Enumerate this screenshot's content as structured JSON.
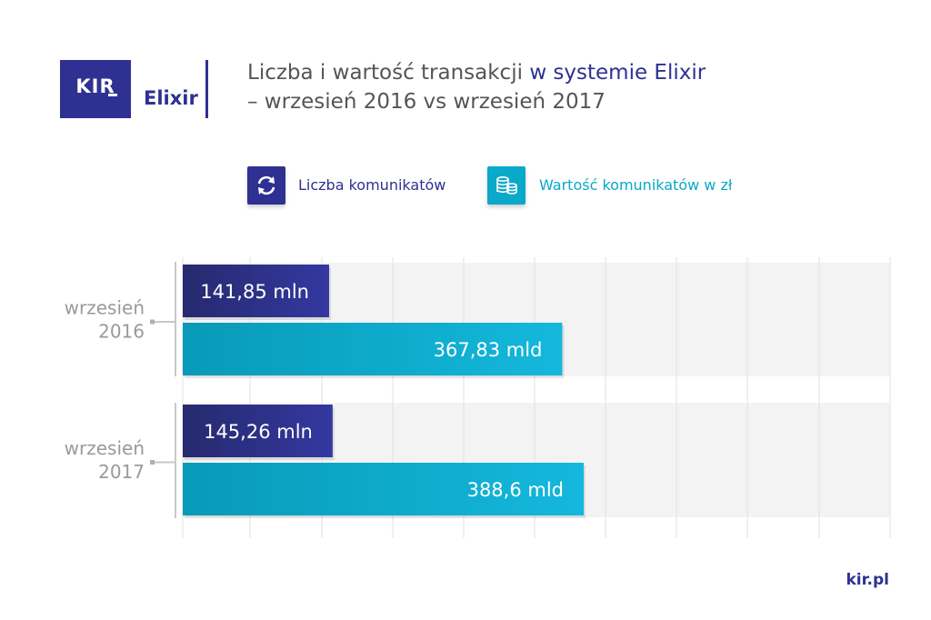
{
  "header": {
    "logo_kir": "KIR",
    "logo_elixir": "Elixir",
    "title_part1": "Liczba i wartość transakcji ",
    "title_accent": "w systemie Elixir",
    "title_line2": "– wrzesień 2016 vs wrzesień 2017"
  },
  "legend": {
    "items": [
      {
        "label": "Liczba komunikatów",
        "icon": "refresh-arrows-icon",
        "color": "#2e3192"
      },
      {
        "label": "Wartość komunikatów w zł",
        "icon": "coins-stack-icon",
        "color": "#0aa8c9"
      }
    ]
  },
  "chart_data": {
    "type": "bar",
    "orientation": "horizontal",
    "categories": [
      "wrzesień\n2016",
      "wrzesień\n2017"
    ],
    "series": [
      {
        "name": "Liczba komunikatów",
        "values": [
          141.85,
          145.26
        ],
        "labels": [
          "141,85 mln",
          "145,26 mln"
        ],
        "color": "#2e3192"
      },
      {
        "name": "Wartość komunikatów w zł",
        "values": [
          367.83,
          388.6
        ],
        "labels": [
          "367,83 mld",
          "388,6 mld"
        ],
        "color": "#0aa8c9"
      }
    ],
    "grid": true
  },
  "footer": {
    "site": "kir.pl"
  }
}
